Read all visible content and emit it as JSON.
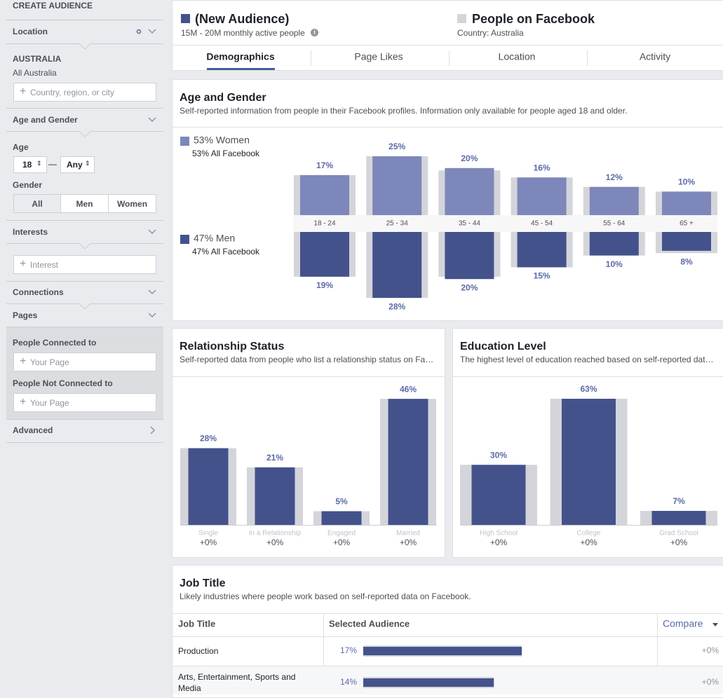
{
  "sidebar": {
    "title": "CREATE AUDIENCE",
    "location": {
      "label": "Location",
      "country": "AUSTRALIA",
      "scope": "All Australia",
      "placeholder": "Country, region, or city"
    },
    "age_gender": {
      "label": "Age and Gender",
      "age_label": "Age",
      "age_from": "18",
      "age_separator": "—",
      "age_to": "Any",
      "gender_label": "Gender",
      "genders": [
        "All",
        "Men",
        "Women"
      ]
    },
    "interests": {
      "label": "Interests",
      "placeholder": "Interest"
    },
    "connections": {
      "label": "Connections"
    },
    "pages": {
      "label": "Pages",
      "connected_label": "People Connected to",
      "connected_placeholder": "Your Page",
      "not_connected_label": "People Not Connected to",
      "not_connected_placeholder": "Your Page"
    },
    "advanced": {
      "label": "Advanced"
    }
  },
  "header": {
    "audience": {
      "name": "(New Audience)",
      "detail": "15M - 20M monthly active people"
    },
    "benchmark": {
      "name": "People on Facebook",
      "detail": "Country: Australia"
    }
  },
  "tabs": [
    "Demographics",
    "Page Likes",
    "Location",
    "Activity"
  ],
  "age_gender": {
    "title": "Age and Gender",
    "subtitle": "Self-reported information from people in their Facebook profiles. Information only available for people aged 18 and older.",
    "categories": [
      "18 - 24",
      "25 - 34",
      "35 - 44",
      "45 - 54",
      "55 - 64",
      "65 +"
    ],
    "series": [
      {
        "name": "53% Women",
        "detail": "53% All Facebook",
        "color": "#7d87b9",
        "values": [
          17,
          25,
          20,
          16,
          12,
          10
        ],
        "value_labels": [
          "17%",
          "25%",
          "20%",
          "16%",
          "12%",
          "10%"
        ],
        "benchmark": [
          17,
          25,
          19,
          16,
          12,
          10
        ]
      },
      {
        "name": "47% Men",
        "detail": "47% All Facebook",
        "color": "#44528c",
        "values": [
          19,
          28,
          20,
          15,
          10,
          8
        ],
        "value_labels": [
          "19%",
          "28%",
          "20%",
          "15%",
          "10%",
          "8%"
        ],
        "benchmark": [
          19,
          28,
          19,
          15,
          10,
          9
        ]
      }
    ]
  },
  "relationship": {
    "title": "Relationship Status",
    "subtitle": "Self-reported data from people who list a relationship status on Fa…",
    "color": "#44528c",
    "categories": [
      "Single",
      "In a Relationship",
      "Engaged",
      "Married"
    ],
    "values": [
      28,
      21,
      5,
      46
    ],
    "value_labels": [
      "28%",
      "21%",
      "5%",
      "46%"
    ],
    "benchmark": [
      28,
      21,
      5,
      46
    ],
    "changes": [
      "+0%",
      "+0%",
      "+0%",
      "+0%"
    ]
  },
  "education": {
    "title": "Education Level",
    "subtitle": "The highest level of education reached based on self-reported dat…",
    "color": "#44528c",
    "categories": [
      "High School",
      "College",
      "Grad School"
    ],
    "values": [
      30,
      63,
      7
    ],
    "value_labels": [
      "30%",
      "63%",
      "7%"
    ],
    "benchmark": [
      30,
      63,
      7
    ],
    "changes": [
      "+0%",
      "+0%",
      "+0%"
    ]
  },
  "job_title": {
    "title": "Job Title",
    "subtitle": "Likely industries where people work based on self-reported data on Facebook.",
    "columns": [
      "Job Title",
      "Selected Audience",
      "Compare"
    ],
    "rows": [
      {
        "name": "Production",
        "value": 17,
        "value_label": "17%",
        "benchmark": 17,
        "change": "+0%"
      },
      {
        "name": "Arts, Entertainment, Sports and Media",
        "value": 14,
        "value_label": "14%",
        "benchmark": 14,
        "change": "+0%"
      }
    ]
  }
}
